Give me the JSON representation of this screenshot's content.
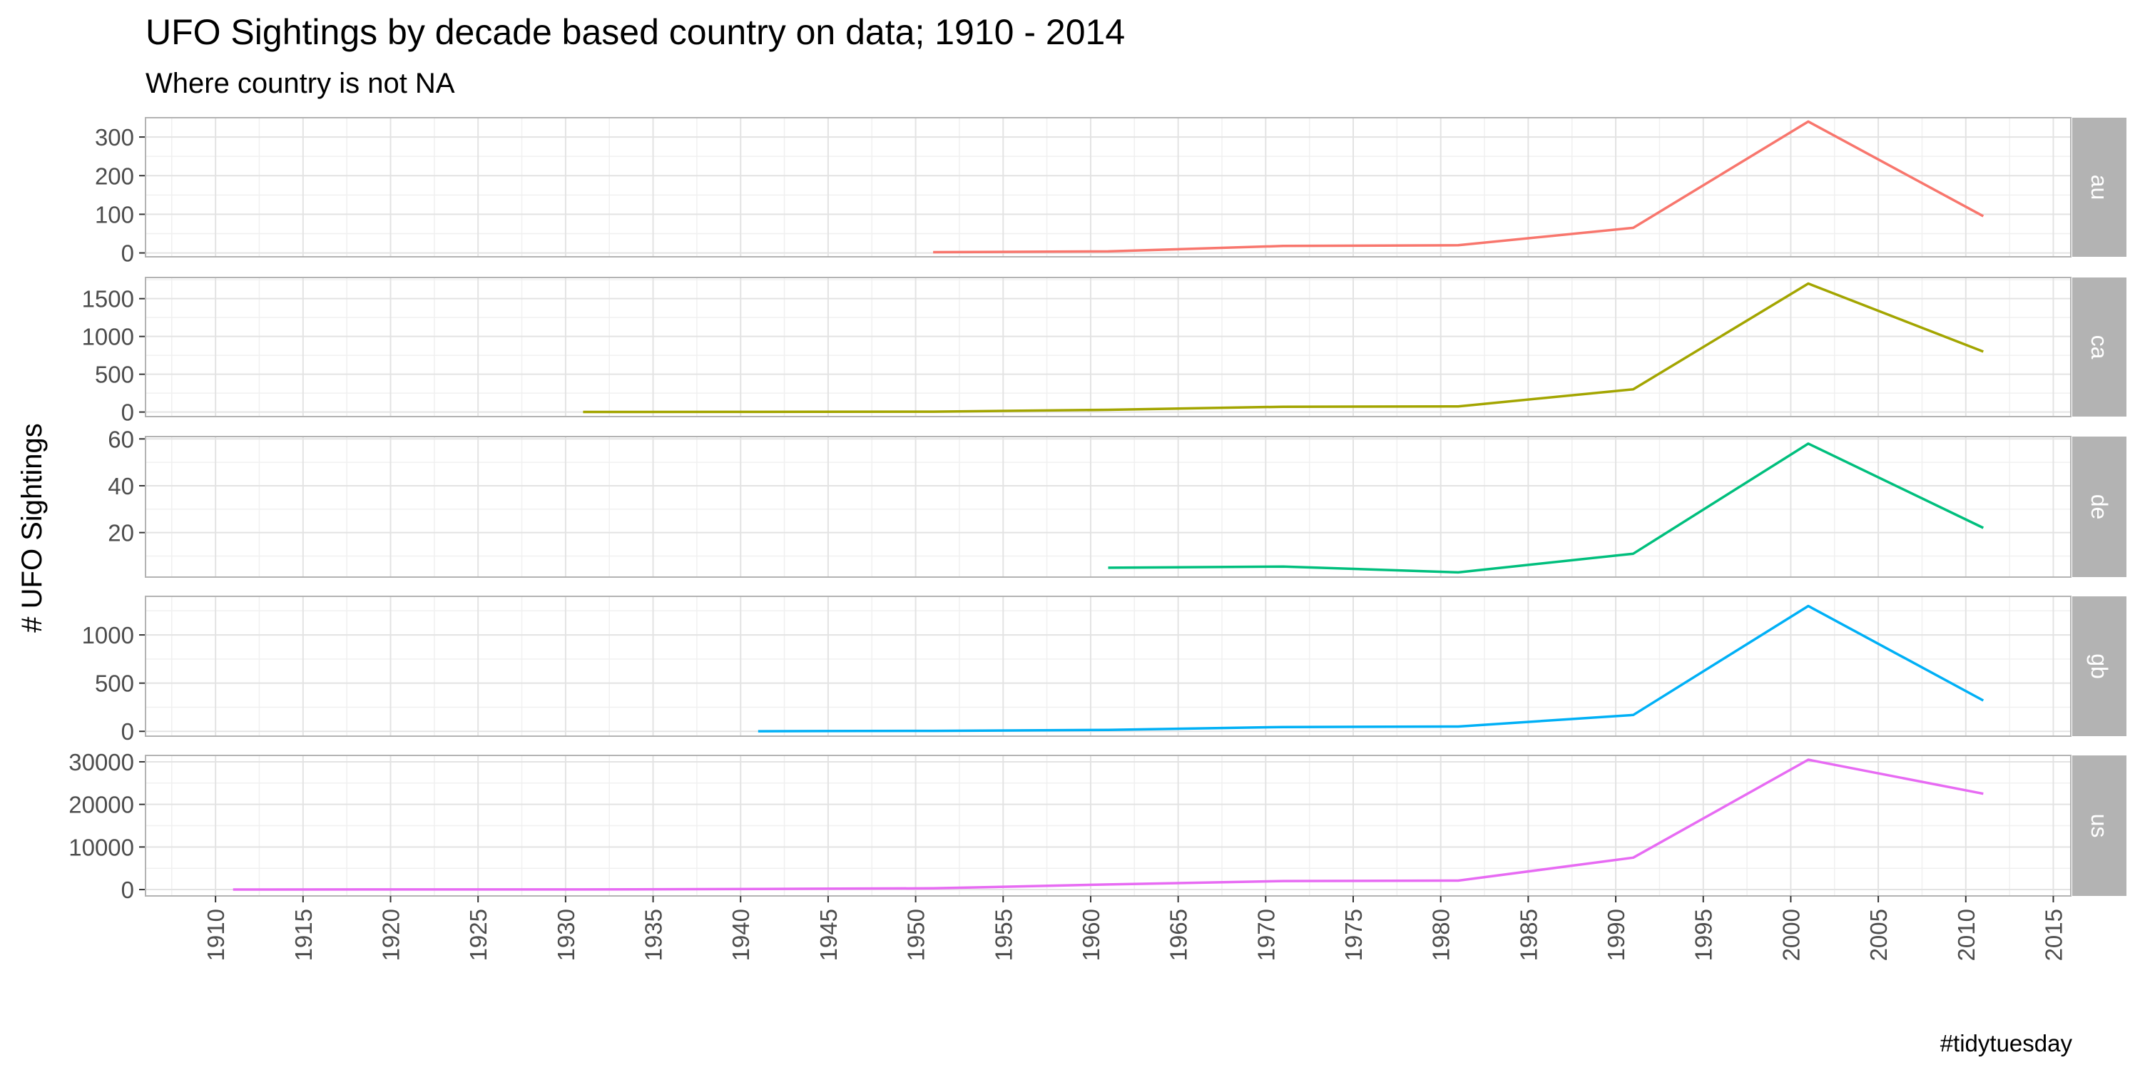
{
  "chart_data": {
    "type": "line",
    "title": "UFO Sightings by decade based country on data; 1910 - 2014",
    "subtitle": "Where country is not NA",
    "ylabel": "# UFO Sightings",
    "xlabel": "",
    "caption": "#tidytuesday",
    "x_range": [
      1906,
      2016
    ],
    "x_ticks": [
      1910,
      1915,
      1920,
      1925,
      1930,
      1935,
      1940,
      1945,
      1950,
      1955,
      1960,
      1965,
      1970,
      1975,
      1980,
      1985,
      1990,
      1995,
      2000,
      2005,
      2010,
      2015
    ],
    "grid": true,
    "facets": "rows",
    "series": [
      {
        "name": "au",
        "color": "#F8766D",
        "ylim": [
          -10,
          350
        ],
        "y_ticks": [
          0,
          100,
          200,
          300
        ],
        "x": [
          1951,
          1961,
          1971,
          1981,
          1991,
          2001,
          2011
        ],
        "values": [
          2,
          4,
          18,
          20,
          65,
          340,
          95
        ]
      },
      {
        "name": "ca",
        "color": "#A3A500",
        "ylim": [
          -60,
          1780
        ],
        "y_ticks": [
          0,
          500,
          1000,
          1500
        ],
        "x": [
          1931,
          1941,
          1951,
          1961,
          1971,
          1981,
          1991,
          2001,
          2011
        ],
        "values": [
          1,
          2,
          5,
          30,
          70,
          75,
          300,
          1700,
          800
        ]
      },
      {
        "name": "de",
        "color": "#00BF7D",
        "ylim": [
          1,
          61
        ],
        "y_ticks": [
          20,
          40,
          60
        ],
        "x": [
          1961,
          1971,
          1981,
          1991,
          2001,
          2011
        ],
        "values": [
          5,
          5.5,
          3,
          11,
          58,
          22
        ]
      },
      {
        "name": "gb",
        "color": "#00B0F6",
        "ylim": [
          -50,
          1400
        ],
        "y_ticks": [
          0,
          500,
          1000
        ],
        "x": [
          1941,
          1951,
          1961,
          1971,
          1981,
          1991,
          2001,
          2011
        ],
        "values": [
          1,
          5,
          15,
          45,
          50,
          170,
          1300,
          320
        ]
      },
      {
        "name": "us",
        "color": "#E76BF3",
        "ylim": [
          -1500,
          31500
        ],
        "y_ticks": [
          0,
          10000,
          20000,
          30000
        ],
        "x": [
          1911,
          1921,
          1931,
          1941,
          1951,
          1961,
          1971,
          1981,
          1991,
          2001,
          2011
        ],
        "values": [
          10,
          20,
          30,
          150,
          300,
          1200,
          2000,
          2100,
          7500,
          30500,
          22500
        ]
      }
    ]
  }
}
